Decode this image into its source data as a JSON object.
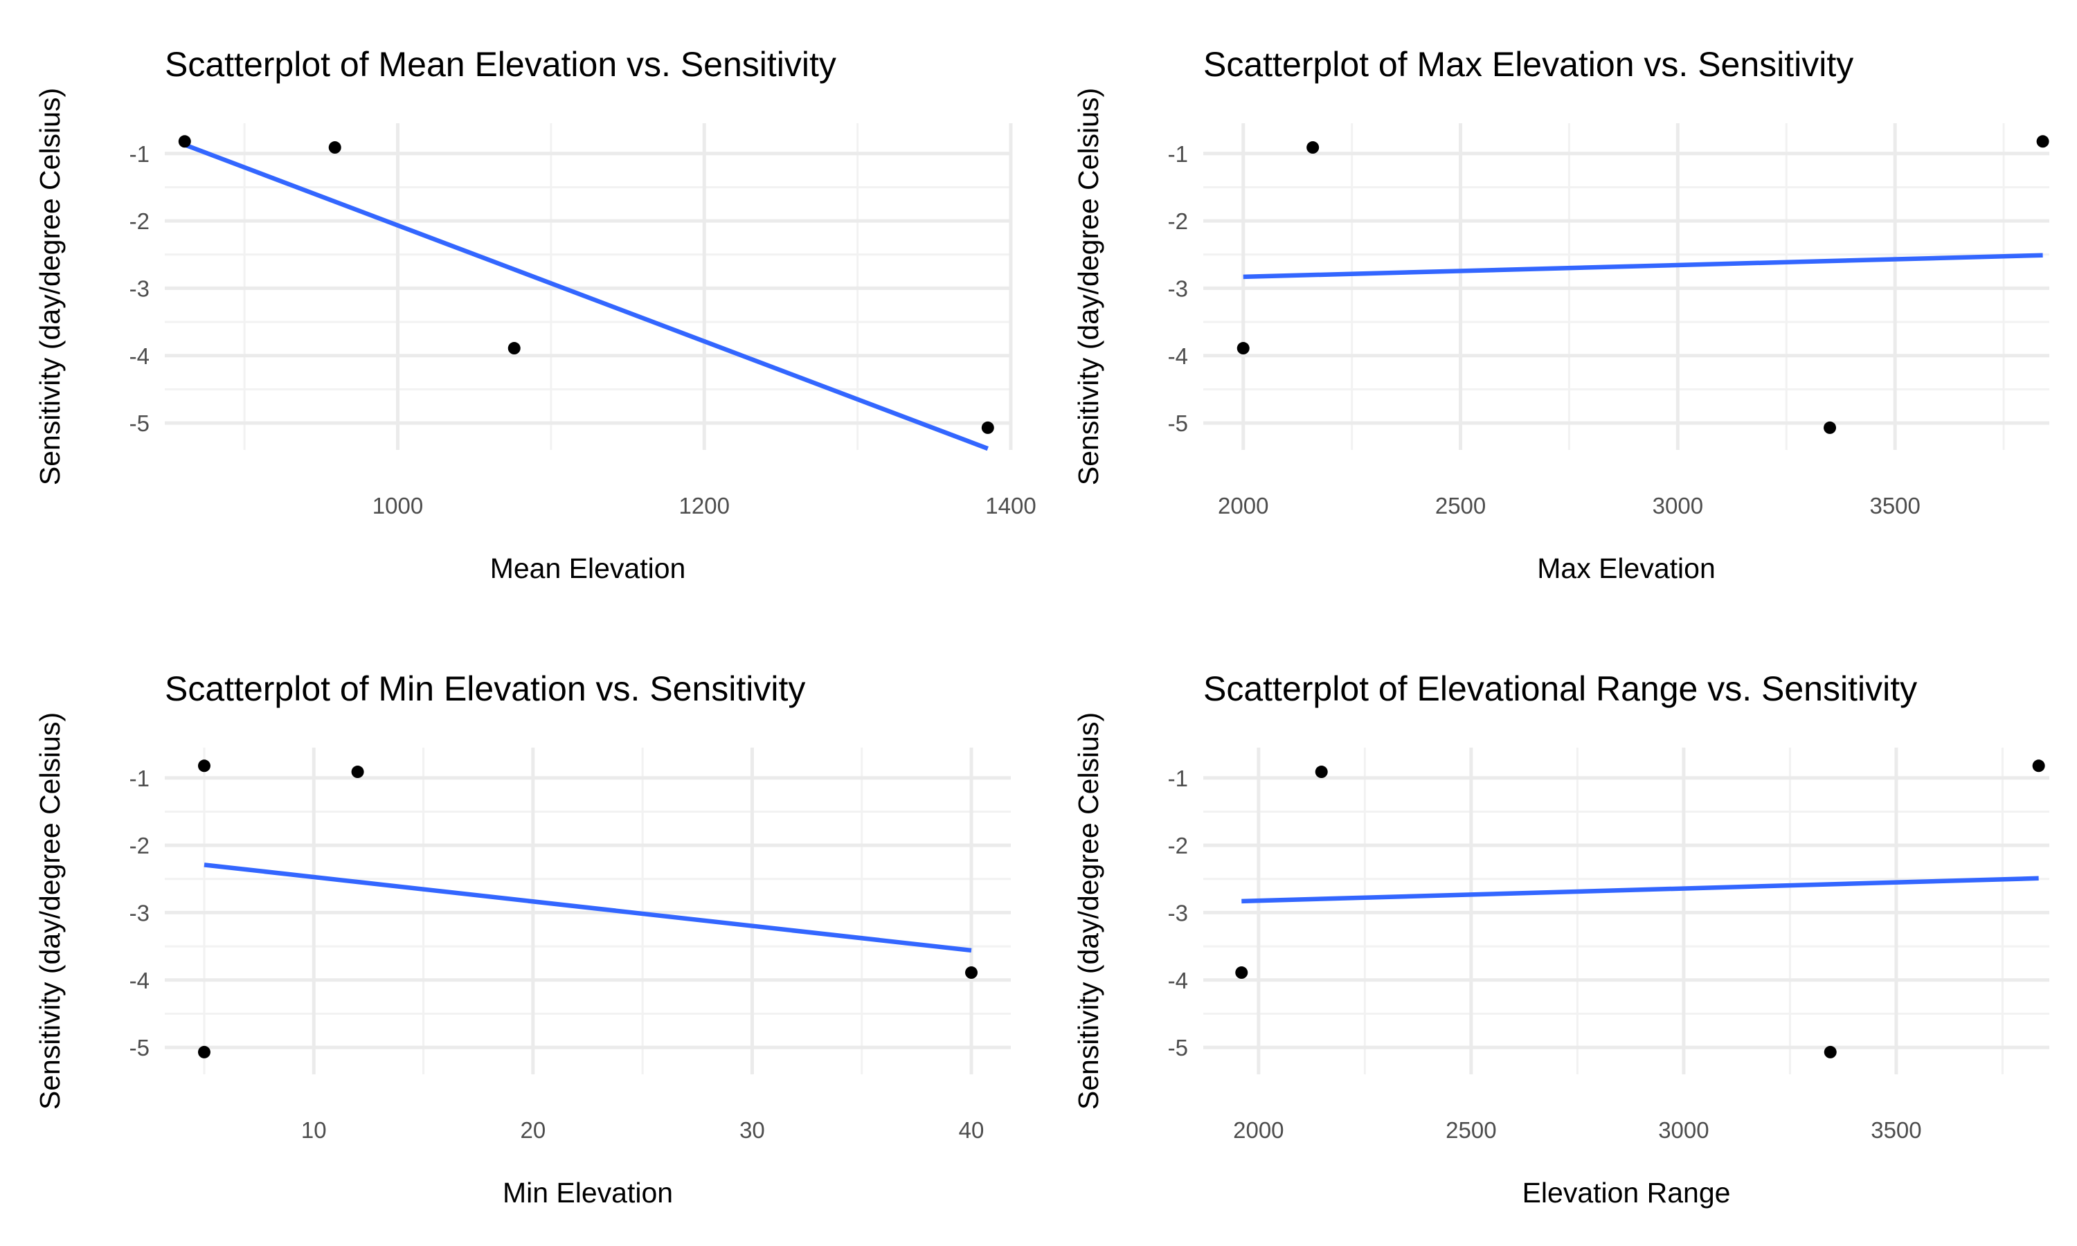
{
  "chart_data": [
    {
      "type": "scatter",
      "title": "Scatterplot of Mean Elevation vs. Sensitivity",
      "xlabel": "Mean Elevation",
      "ylabel": "Sensitivity (day/degree Celsius)",
      "xlim": [
        848,
        1400
      ],
      "ylim": [
        -5.4,
        -0.55
      ],
      "xticks": [
        1000,
        1200,
        1400
      ],
      "yticks": [
        -1,
        -2,
        -3,
        -4,
        -5
      ],
      "points": [
        {
          "x": 861,
          "y": -0.82
        },
        {
          "x": 959,
          "y": -0.91
        },
        {
          "x": 1076,
          "y": -3.89
        },
        {
          "x": 1385,
          "y": -5.07
        }
      ],
      "fit_line": {
        "x": [
          861,
          1385
        ],
        "y": [
          -0.87,
          -5.38
        ]
      },
      "fit_color": "#3366ff",
      "grid": true
    },
    {
      "type": "scatter",
      "title": "Scatterplot of Max Elevation vs. Sensitivity",
      "xlabel": "Max Elevation",
      "ylabel": "Sensitivity (day/degree Celsius)",
      "xlim": [
        1908,
        3855
      ],
      "ylim": [
        -5.4,
        -0.55
      ],
      "xticks": [
        2000,
        2500,
        3000,
        3500
      ],
      "yticks": [
        -1,
        -2,
        -3,
        -4,
        -5
      ],
      "points": [
        {
          "x": 2000,
          "y": -3.89
        },
        {
          "x": 2160,
          "y": -0.91
        },
        {
          "x": 3350,
          "y": -5.07
        },
        {
          "x": 3840,
          "y": -0.82
        }
      ],
      "fit_line": {
        "x": [
          2000,
          3840
        ],
        "y": [
          -2.83,
          -2.51
        ]
      },
      "fit_color": "#3366ff",
      "grid": true
    },
    {
      "type": "scatter",
      "title": "Scatterplot of Min Elevation vs. Sensitivity",
      "xlabel": "Min Elevation",
      "ylabel": "Sensitivity (day/degree Celsius)",
      "xlim": [
        3.2,
        41.8
      ],
      "ylim": [
        -5.4,
        -0.55
      ],
      "xticks": [
        10,
        20,
        30,
        40
      ],
      "yticks": [
        -1,
        -2,
        -3,
        -4,
        -5
      ],
      "points": [
        {
          "x": 5,
          "y": -0.82
        },
        {
          "x": 12,
          "y": -0.91
        },
        {
          "x": 40,
          "y": -3.89
        },
        {
          "x": 5,
          "y": -5.07
        }
      ],
      "fit_line": {
        "x": [
          5,
          40
        ],
        "y": [
          -2.29,
          -3.56
        ]
      },
      "fit_color": "#3366ff",
      "grid": true
    },
    {
      "type": "scatter",
      "title": "Scatterplot of Elevational Range vs. Sensitivity",
      "xlabel": "Elevation Range",
      "ylabel": "Sensitivity (day/degree Celsius)",
      "xlim": [
        1870,
        3860
      ],
      "ylim": [
        -5.4,
        -0.55
      ],
      "xticks": [
        2000,
        2500,
        3000,
        3500
      ],
      "yticks": [
        -1,
        -2,
        -3,
        -4,
        -5
      ],
      "points": [
        {
          "x": 1960,
          "y": -3.89
        },
        {
          "x": 2148,
          "y": -0.91
        },
        {
          "x": 3345,
          "y": -5.07
        },
        {
          "x": 3835,
          "y": -0.82
        }
      ],
      "fit_line": {
        "x": [
          1960,
          3835
        ],
        "y": [
          -2.83,
          -2.49
        ]
      },
      "fit_color": "#3366ff",
      "grid": true
    }
  ]
}
